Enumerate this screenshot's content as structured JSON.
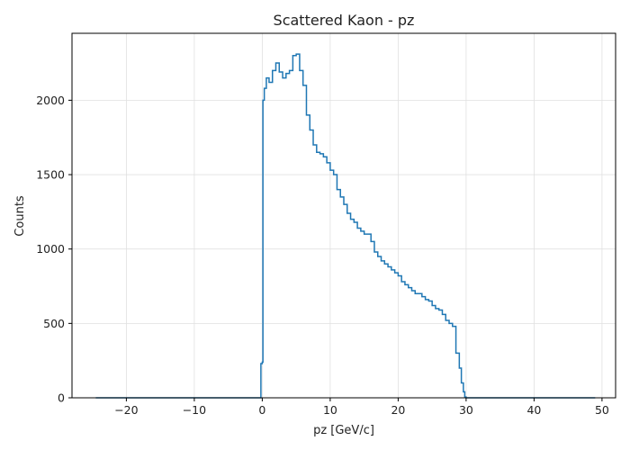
{
  "chart_data": {
    "type": "histogram",
    "title": "Scattered Kaon - pz",
    "xlabel": "pz [GeV/c]",
    "ylabel": "Counts",
    "xlim": [
      -28,
      52
    ],
    "ylim": [
      0,
      2450
    ],
    "xticks": [
      -20,
      -10,
      0,
      10,
      20,
      30,
      40,
      50
    ],
    "yticks": [
      0,
      500,
      1000,
      1500,
      2000
    ],
    "grid": true,
    "series": [
      {
        "color": "#1f77b4",
        "x": [
          -24.5,
          -1.0,
          -0.2,
          0.0,
          0.1,
          0.3,
          0.6,
          1.0,
          1.5,
          2.0,
          2.5,
          3.0,
          3.5,
          4.0,
          4.5,
          5.0,
          5.5,
          6.0,
          6.5,
          7.0,
          7.5,
          8.0,
          8.5,
          9.0,
          9.5,
          10.0,
          10.5,
          11.0,
          11.5,
          12.0,
          12.5,
          13.0,
          13.5,
          14.0,
          14.5,
          15.0,
          15.5,
          16.0,
          16.5,
          17.0,
          17.5,
          18.0,
          18.5,
          19.0,
          19.5,
          20.0,
          20.5,
          21.0,
          21.5,
          22.0,
          22.5,
          23.0,
          23.5,
          24.0,
          24.5,
          25.0,
          25.5,
          26.0,
          26.5,
          27.0,
          27.5,
          28.0,
          28.5,
          29.0,
          29.3,
          29.6,
          29.8,
          30.0,
          49.0
        ],
        "y": [
          0,
          0,
          230,
          240,
          2000,
          2080,
          2150,
          2120,
          2200,
          2250,
          2190,
          2150,
          2180,
          2200,
          2300,
          2310,
          2200,
          2100,
          1900,
          1800,
          1700,
          1650,
          1640,
          1620,
          1580,
          1530,
          1500,
          1400,
          1350,
          1300,
          1240,
          1200,
          1180,
          1140,
          1120,
          1100,
          1100,
          1050,
          980,
          950,
          920,
          900,
          880,
          860,
          840,
          820,
          780,
          760,
          740,
          720,
          700,
          700,
          680,
          660,
          650,
          620,
          600,
          590,
          560,
          520,
          500,
          480,
          300,
          200,
          100,
          40,
          5,
          0,
          0
        ]
      }
    ]
  }
}
